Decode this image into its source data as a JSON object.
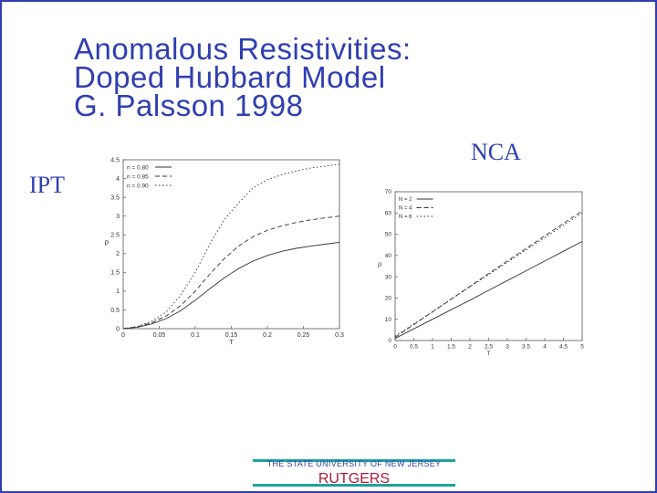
{
  "title_lines": [
    "Anomalous Resistivities:",
    "Doped Hubbard Model",
    "G. Palsson 1998"
  ],
  "label_left": "IPT",
  "label_right": "NCA",
  "footer": {
    "university": "THE STATE UNIVERSITY OF NEW JERSEY",
    "name": "RUTGERS"
  },
  "colors": {
    "title": "#2f3fb0",
    "border": "#2f3fb0",
    "footer_bar": "#1fa3a0",
    "rutgers": "#b0183a"
  },
  "chart_data": [
    {
      "type": "line",
      "xlabel": "T",
      "ylabel": "ρ",
      "xlim": [
        0,
        0.3
      ],
      "ylim": [
        0,
        4.5
      ],
      "xticks": [
        0,
        0.05,
        0.1,
        0.15,
        0.2,
        0.25,
        0.3
      ],
      "xtick_labels": [
        "0",
        "0.05",
        "0.1",
        "0.15",
        "0.2",
        "0.25",
        "0.3"
      ],
      "yticks": [
        0,
        0.5,
        1,
        1.5,
        2,
        2.5,
        3,
        3.5,
        4,
        4.5
      ],
      "ytick_labels": [
        "0",
        "0.5",
        "1",
        "1.5",
        "2",
        "2.5",
        "3",
        "3.5",
        "4",
        "4.5"
      ],
      "legend_position": "top-left",
      "series": [
        {
          "name": "n = 0.80",
          "dash": "solid",
          "x": [
            0,
            0.02,
            0.04,
            0.06,
            0.08,
            0.1,
            0.12,
            0.14,
            0.16,
            0.18,
            0.2,
            0.22,
            0.24,
            0.26,
            0.28,
            0.3
          ],
          "y": [
            0,
            0.04,
            0.13,
            0.27,
            0.48,
            0.76,
            1.06,
            1.35,
            1.6,
            1.8,
            1.95,
            2.06,
            2.14,
            2.2,
            2.25,
            2.3
          ]
        },
        {
          "name": "n = 0.85",
          "dash": "dashed",
          "x": [
            0,
            0.02,
            0.04,
            0.06,
            0.08,
            0.1,
            0.12,
            0.14,
            0.16,
            0.18,
            0.2,
            0.22,
            0.24,
            0.26,
            0.28,
            0.3
          ],
          "y": [
            0,
            0.05,
            0.16,
            0.34,
            0.62,
            1.0,
            1.45,
            1.86,
            2.2,
            2.45,
            2.62,
            2.74,
            2.83,
            2.9,
            2.95,
            3.0
          ]
        },
        {
          "name": "n = 0.90",
          "dash": "dotted",
          "x": [
            0,
            0.02,
            0.04,
            0.06,
            0.08,
            0.1,
            0.12,
            0.14,
            0.16,
            0.18,
            0.2,
            0.22,
            0.24,
            0.26,
            0.28,
            0.3
          ],
          "y": [
            0,
            0.06,
            0.2,
            0.45,
            0.9,
            1.5,
            2.25,
            2.9,
            3.35,
            3.75,
            3.97,
            4.1,
            4.2,
            4.28,
            4.33,
            4.38
          ]
        }
      ]
    },
    {
      "type": "line",
      "xlabel": "T",
      "ylabel": "ρ",
      "xlim": [
        0,
        5
      ],
      "ylim": [
        0,
        70
      ],
      "xticks": [
        0,
        0.5,
        1,
        1.5,
        2,
        2.5,
        3,
        3.5,
        4,
        4.5,
        5
      ],
      "xtick_labels": [
        "0",
        "0.5",
        "1",
        "1.5",
        "2",
        "2.5",
        "3",
        "3.5",
        "4",
        "4.5",
        "5"
      ],
      "yticks": [
        0,
        10,
        20,
        30,
        40,
        50,
        60,
        70
      ],
      "ytick_labels": [
        "0",
        "10",
        "20",
        "30",
        "40",
        "50",
        "60",
        "70"
      ],
      "legend_position": "top-left",
      "series": [
        {
          "name": "N = 2",
          "dash": "solid",
          "x": [
            0,
            0.5,
            1,
            1.5,
            2,
            2.5,
            3,
            3.5,
            4,
            4.5,
            5
          ],
          "y": [
            1,
            5.5,
            10,
            14.5,
            19,
            23.6,
            28.2,
            32.8,
            37.4,
            42,
            46.6
          ]
        },
        {
          "name": "N = 4",
          "dash": "dashed",
          "x": [
            0,
            0.5,
            1,
            1.5,
            2,
            2.5,
            3,
            3.5,
            4,
            4.5,
            5
          ],
          "y": [
            1.5,
            7.5,
            13.5,
            19.5,
            25.5,
            31.5,
            37.4,
            43.3,
            49.2,
            55.1,
            61
          ]
        },
        {
          "name": "N = 6",
          "dash": "dotted",
          "x": [
            0,
            0.5,
            1,
            1.5,
            2,
            2.5,
            3,
            3.5,
            4,
            4.5,
            5
          ],
          "y": [
            2,
            7.8,
            13.6,
            19.4,
            25.2,
            31,
            36.8,
            42.6,
            48.4,
            54.2,
            60
          ]
        }
      ]
    }
  ]
}
